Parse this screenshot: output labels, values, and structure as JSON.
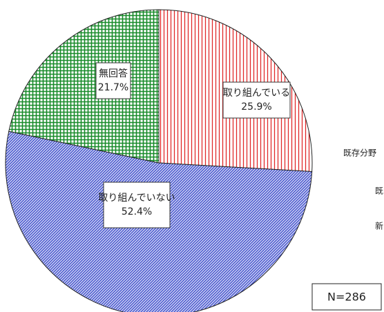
{
  "chart_data": {
    "type": "pie",
    "categories": [
      "取り組んでいる",
      "取り組んでいない",
      "無回答"
    ],
    "values": [
      25.9,
      52.4,
      21.7
    ],
    "value_labels": [
      "25.9%",
      "52.4%",
      "21.7%"
    ],
    "colors": [
      "#e02828",
      "#2a3cc8",
      "#168a28"
    ],
    "annotations": [
      "既存分野",
      "既",
      "新",
      "N=286"
    ]
  }
}
